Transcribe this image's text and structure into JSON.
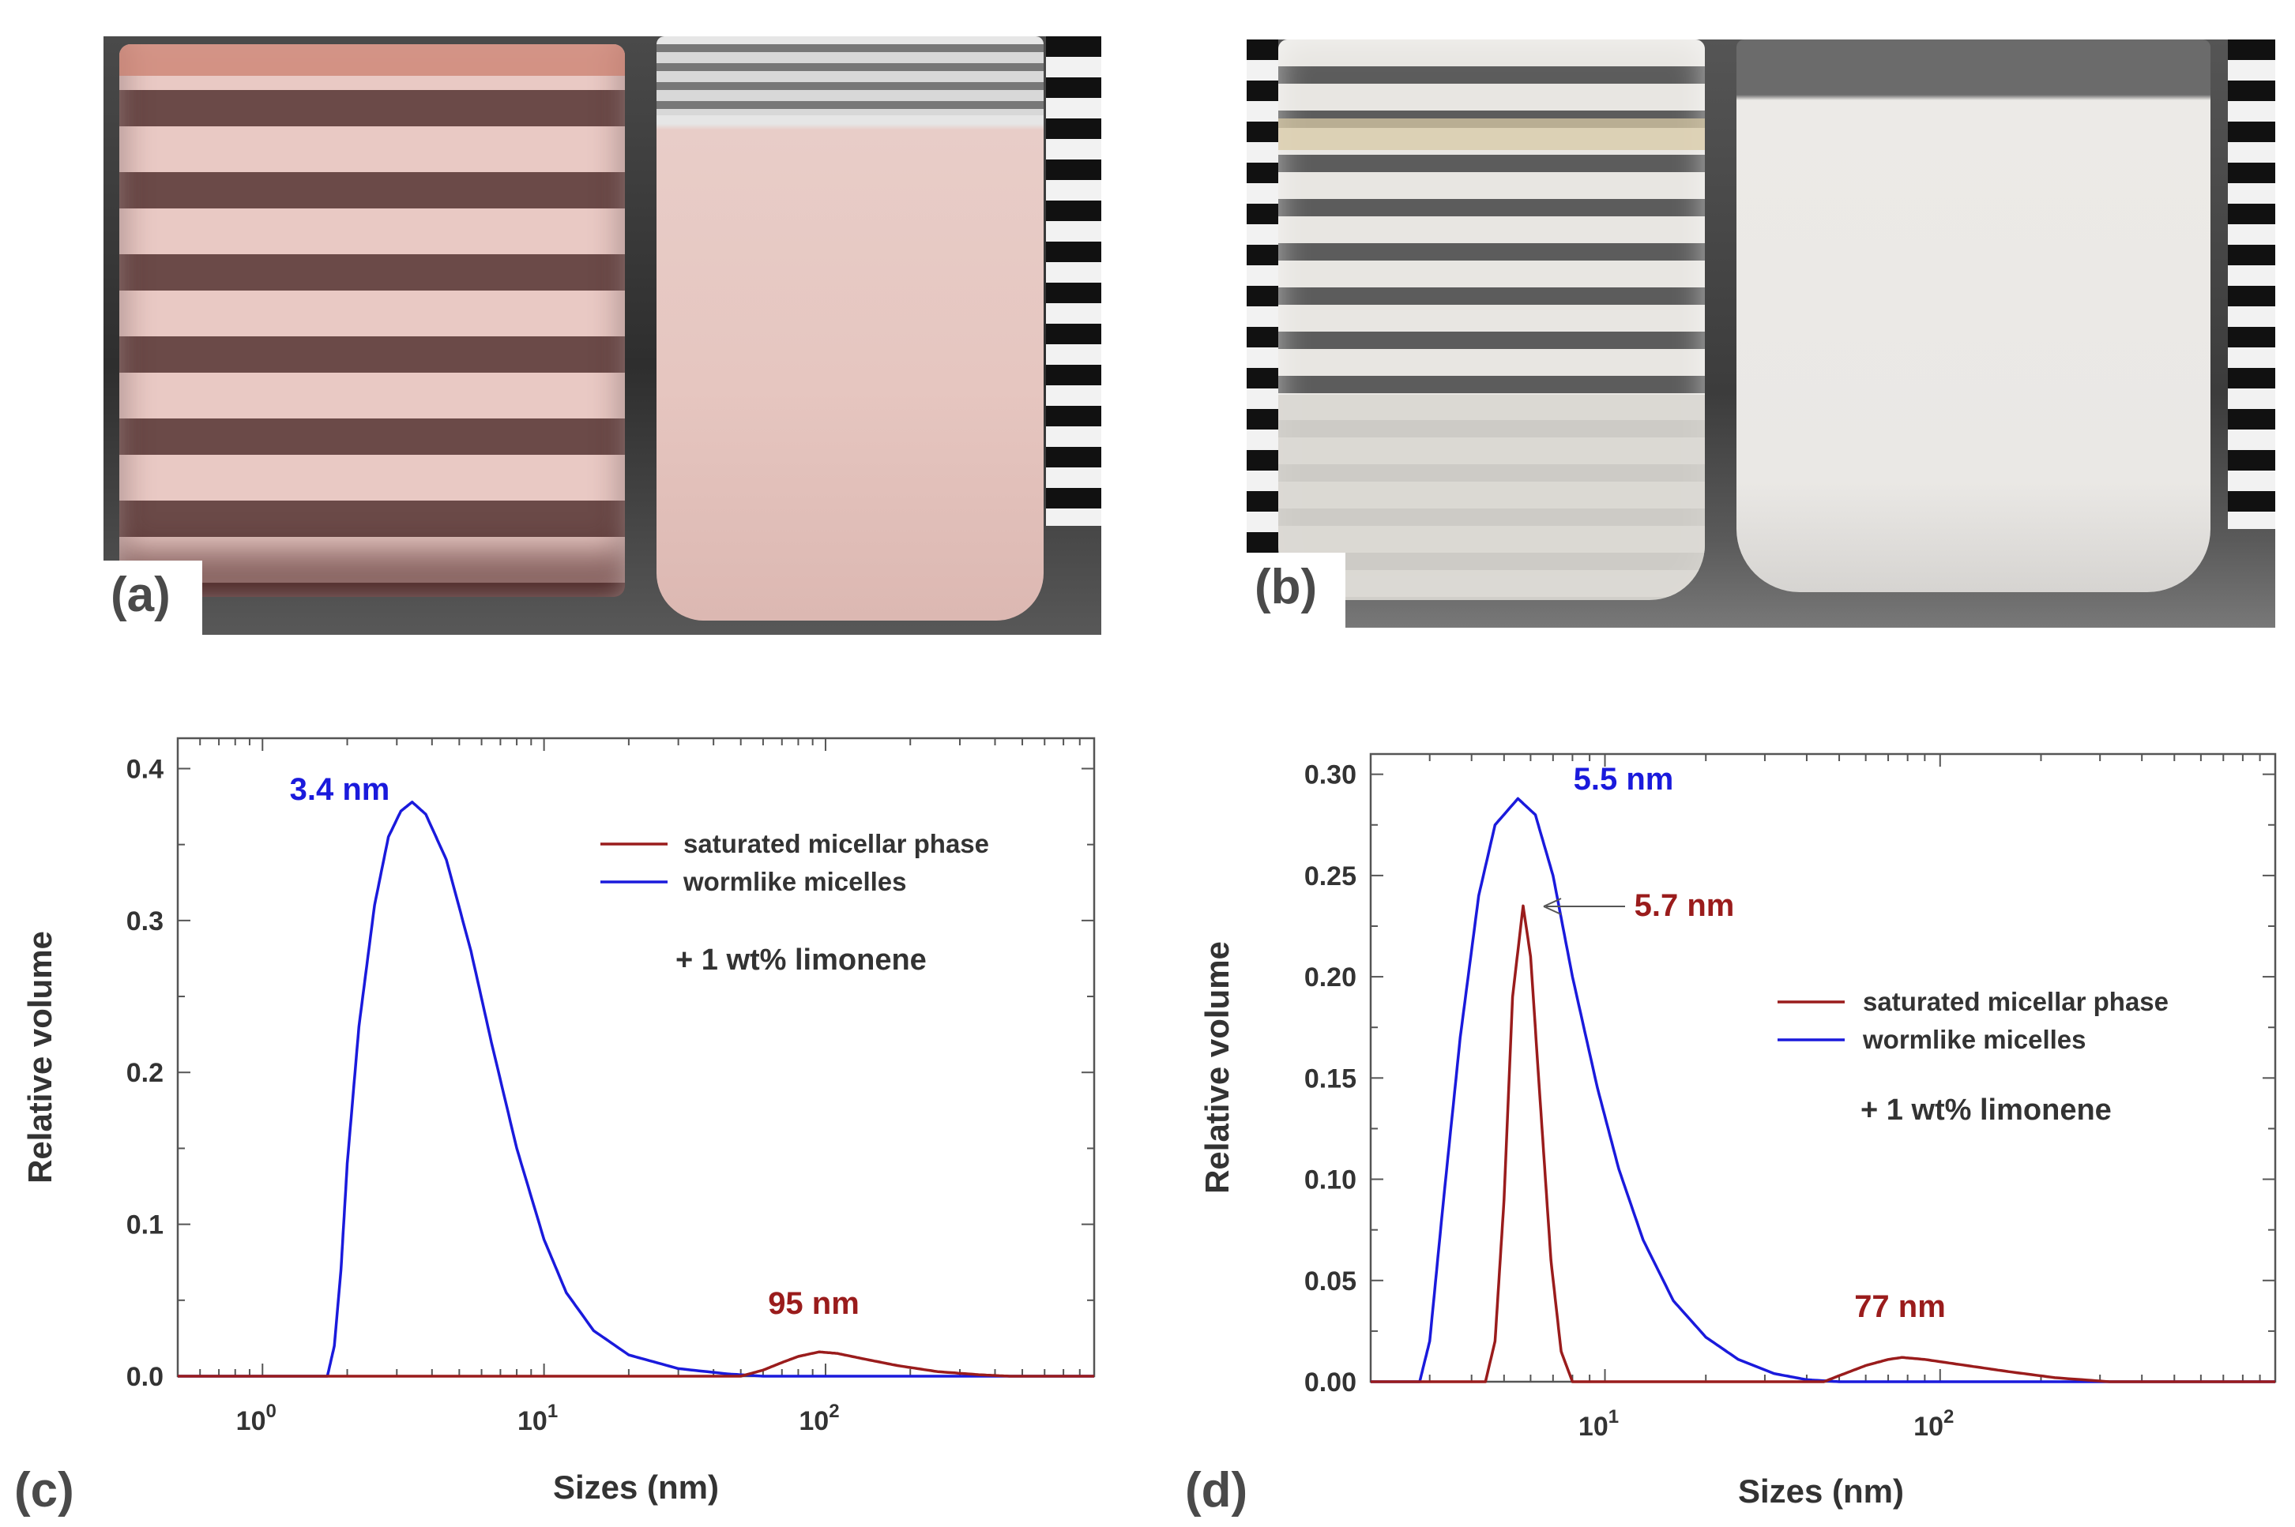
{
  "panels": {
    "a": "(a)",
    "b": "(b)",
    "c": "(c)",
    "d": "(d)"
  },
  "colors": {
    "saturated": "#9a1c1c",
    "wormlike": "#1a1adc",
    "axis": "#555555"
  },
  "chart_data": [
    {
      "panel": "c",
      "type": "line",
      "xscale": "log",
      "xlabel": "Sizes (nm)",
      "ylabel": "Relative volume",
      "xlim": [
        0.5,
        900
      ],
      "ylim": [
        0,
        0.42
      ],
      "x_ticks": [
        {
          "base": "10",
          "exp": "0",
          "value": 1
        },
        {
          "base": "10",
          "exp": "1",
          "value": 10
        },
        {
          "base": "10",
          "exp": "2",
          "value": 100
        }
      ],
      "y_ticks": [
        "0.0",
        "0.1",
        "0.2",
        "0.3",
        "0.4"
      ],
      "legend": [
        "saturated micellar phase",
        "wormlike micelles"
      ],
      "note": "+ 1 wt% limonene",
      "annotations": [
        {
          "text": "3.4 nm",
          "series": "wormlike micelles"
        },
        {
          "text": "95 nm",
          "series": "saturated micellar phase"
        }
      ],
      "series": [
        {
          "name": "wormlike micelles",
          "points": [
            [
              0.5,
              0
            ],
            [
              1.7,
              0
            ],
            [
              1.8,
              0.02
            ],
            [
              1.9,
              0.07
            ],
            [
              2.0,
              0.14
            ],
            [
              2.2,
              0.23
            ],
            [
              2.5,
              0.31
            ],
            [
              2.8,
              0.355
            ],
            [
              3.1,
              0.372
            ],
            [
              3.4,
              0.378
            ],
            [
              3.8,
              0.37
            ],
            [
              4.5,
              0.34
            ],
            [
              5.5,
              0.28
            ],
            [
              6.5,
              0.22
            ],
            [
              8,
              0.15
            ],
            [
              10,
              0.09
            ],
            [
              12,
              0.055
            ],
            [
              15,
              0.03
            ],
            [
              20,
              0.014
            ],
            [
              30,
              0.005
            ],
            [
              45,
              0.0015
            ],
            [
              60,
              0
            ],
            [
              900,
              0
            ]
          ]
        },
        {
          "name": "saturated micellar phase",
          "points": [
            [
              0.5,
              0
            ],
            [
              50,
              0
            ],
            [
              60,
              0.004
            ],
            [
              70,
              0.009
            ],
            [
              80,
              0.013
            ],
            [
              95,
              0.016
            ],
            [
              110,
              0.015
            ],
            [
              140,
              0.011
            ],
            [
              180,
              0.007
            ],
            [
              250,
              0.003
            ],
            [
              350,
              0.001
            ],
            [
              450,
              0
            ],
            [
              900,
              0
            ]
          ]
        }
      ]
    },
    {
      "panel": "d",
      "type": "line",
      "xscale": "log",
      "xlabel": "Sizes (nm)",
      "ylabel": "Relative volume",
      "xlim": [
        2,
        1000
      ],
      "ylim": [
        0,
        0.31
      ],
      "x_ticks": [
        {
          "base": "10",
          "exp": "1",
          "value": 10
        },
        {
          "base": "10",
          "exp": "2",
          "value": 100
        }
      ],
      "y_ticks": [
        "0.00",
        "0.05",
        "0.10",
        "0.15",
        "0.20",
        "0.25",
        "0.30"
      ],
      "legend": [
        "saturated micellar phase",
        "wormlike micelles"
      ],
      "note": "+ 1 wt% limonene",
      "annotations": [
        {
          "text": "5.5 nm",
          "series": "wormlike micelles"
        },
        {
          "text": "5.7 nm",
          "series": "saturated micellar phase"
        },
        {
          "text": "77 nm",
          "series": "saturated micellar phase"
        }
      ],
      "series": [
        {
          "name": "wormlike micelles",
          "points": [
            [
              2,
              0
            ],
            [
              2.8,
              0
            ],
            [
              3.0,
              0.02
            ],
            [
              3.3,
              0.09
            ],
            [
              3.7,
              0.17
            ],
            [
              4.2,
              0.24
            ],
            [
              4.7,
              0.275
            ],
            [
              5.5,
              0.288
            ],
            [
              6.2,
              0.28
            ],
            [
              7,
              0.25
            ],
            [
              8,
              0.2
            ],
            [
              9.5,
              0.145
            ],
            [
              11,
              0.105
            ],
            [
              13,
              0.07
            ],
            [
              16,
              0.04
            ],
            [
              20,
              0.022
            ],
            [
              25,
              0.011
            ],
            [
              32,
              0.004
            ],
            [
              40,
              0.001
            ],
            [
              50,
              0
            ],
            [
              1000,
              0
            ]
          ]
        },
        {
          "name": "saturated micellar phase",
          "points": [
            [
              2,
              0
            ],
            [
              4.4,
              0
            ],
            [
              4.7,
              0.02
            ],
            [
              5.0,
              0.09
            ],
            [
              5.3,
              0.19
            ],
            [
              5.7,
              0.235
            ],
            [
              6.0,
              0.21
            ],
            [
              6.4,
              0.14
            ],
            [
              6.9,
              0.06
            ],
            [
              7.4,
              0.015
            ],
            [
              8,
              0
            ],
            [
              45,
              0
            ],
            [
              50,
              0.003
            ],
            [
              60,
              0.008
            ],
            [
              70,
              0.011
            ],
            [
              77,
              0.012
            ],
            [
              90,
              0.011
            ],
            [
              120,
              0.008
            ],
            [
              160,
              0.005
            ],
            [
              220,
              0.002
            ],
            [
              320,
              0
            ],
            [
              1000,
              0
            ]
          ]
        }
      ]
    }
  ]
}
